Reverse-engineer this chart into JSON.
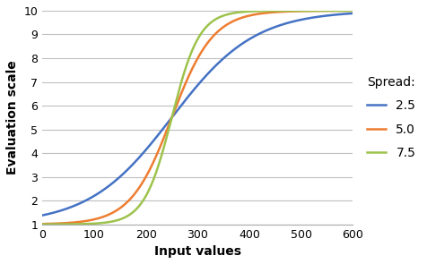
{
  "title": "",
  "xlabel": "Input values",
  "ylabel": "Evaluation scale",
  "xlim": [
    0,
    600
  ],
  "ylim": [
    1,
    10
  ],
  "xticks": [
    0,
    100,
    200,
    300,
    400,
    500,
    600
  ],
  "yticks": [
    1,
    2,
    3,
    4,
    5,
    6,
    7,
    8,
    9,
    10
  ],
  "midpoint": 250,
  "scale": 200,
  "series": [
    {
      "label": "2.5",
      "spread": 2.5,
      "color": "#4472c4"
    },
    {
      "label": "5.0",
      "spread": 5.0,
      "color": "#ed7d31"
    },
    {
      "label": "7.5",
      "spread": 7.5,
      "color": "#9dc34c"
    }
  ],
  "legend_title": "Spread:",
  "background_color": "#ffffff",
  "grid_color": "#bfbfbf",
  "linewidth": 1.8
}
